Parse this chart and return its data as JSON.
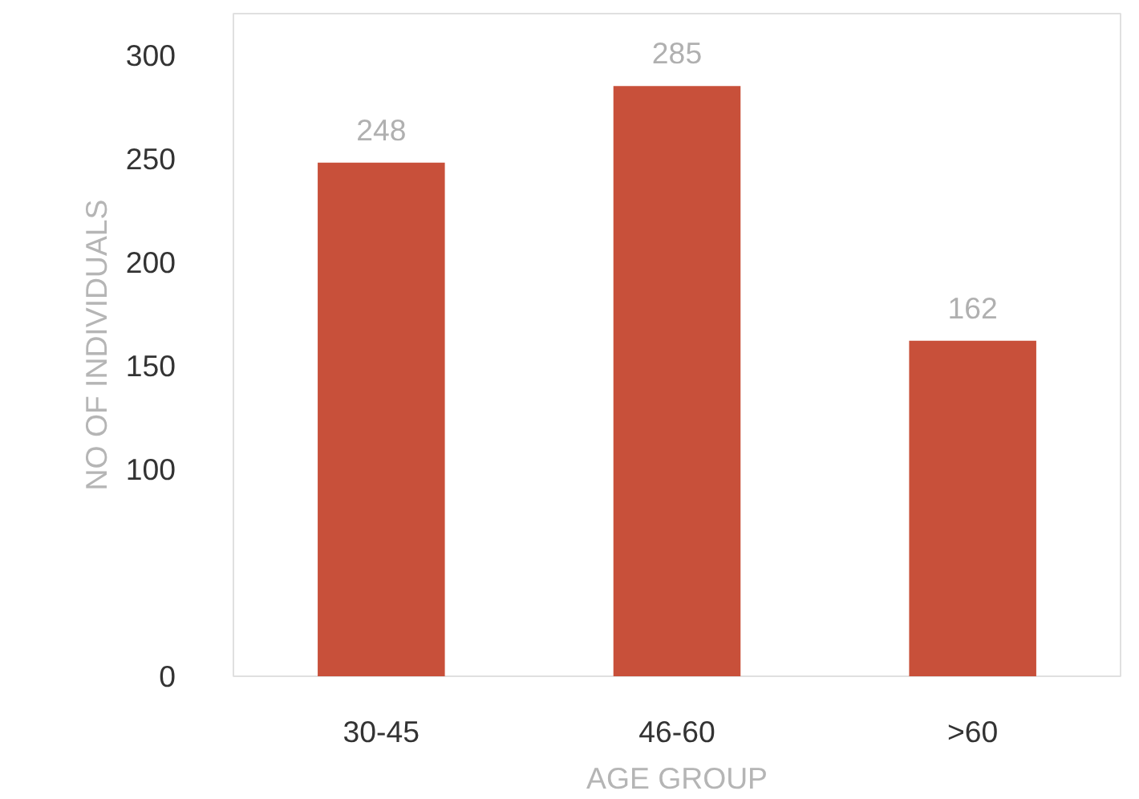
{
  "chart_data": {
    "type": "bar",
    "xlabel": "AGE GROUP",
    "ylabel": "NO OF INDIVIDUALS",
    "categories": [
      "30-45",
      "46-60",
      ">60"
    ],
    "values": [
      248,
      285,
      162
    ],
    "color": "#c8503a",
    "ylim": [
      0,
      320
    ],
    "yticks": [
      0,
      100,
      150,
      200,
      250,
      300
    ],
    "grid": false,
    "data_labels": true
  }
}
